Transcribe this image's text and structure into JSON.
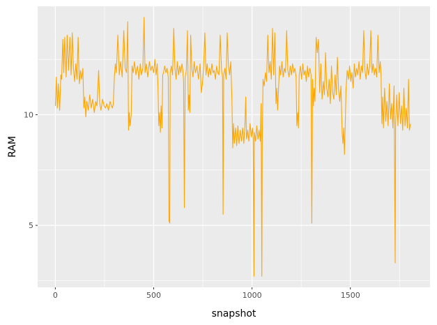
{
  "chart_data": {
    "type": "line",
    "title": "",
    "xlabel": "snapshot",
    "ylabel": "RAM",
    "xlim": [
      -90,
      1905
    ],
    "ylim": [
      2.2,
      14.9
    ],
    "x_ticks": [
      0,
      500,
      1000,
      1500
    ],
    "y_ticks": [
      5,
      10
    ],
    "grid": true,
    "legend": "none",
    "colors": {
      "line": "#FFA500",
      "panel": "#EBEBEB",
      "grid": "#FFFFFF"
    },
    "series": [
      {
        "points": [
          [
            0,
            10.4
          ],
          [
            5,
            11.7
          ],
          [
            10,
            10.3
          ],
          [
            15,
            11.4
          ],
          [
            22,
            10.2
          ],
          [
            28,
            11.8
          ],
          [
            32,
            11.6
          ],
          [
            38,
            13.4
          ],
          [
            43,
            11.9
          ],
          [
            48,
            13.5
          ],
          [
            55,
            11.7
          ],
          [
            60,
            13.6
          ],
          [
            67,
            12.0
          ],
          [
            74,
            13.5
          ],
          [
            80,
            11.8
          ],
          [
            86,
            13.7
          ],
          [
            92,
            12.1
          ],
          [
            98,
            11.5
          ],
          [
            104,
            12.3
          ],
          [
            110,
            11.6
          ],
          [
            116,
            13.5
          ],
          [
            122,
            11.4
          ],
          [
            128,
            12.0
          ],
          [
            134,
            11.6
          ],
          [
            140,
            12.1
          ],
          [
            145,
            10.3
          ],
          [
            150,
            10.8
          ],
          [
            155,
            9.9
          ],
          [
            160,
            10.6
          ],
          [
            168,
            10.2
          ],
          [
            175,
            10.9
          ],
          [
            182,
            10.3
          ],
          [
            190,
            10.7
          ],
          [
            198,
            10.1
          ],
          [
            205,
            10.6
          ],
          [
            212,
            10.4
          ],
          [
            220,
            12.0
          ],
          [
            226,
            10.5
          ],
          [
            232,
            10.2
          ],
          [
            240,
            10.7
          ],
          [
            248,
            10.4
          ],
          [
            255,
            10.3
          ],
          [
            262,
            10.5
          ],
          [
            270,
            10.2
          ],
          [
            278,
            10.6
          ],
          [
            285,
            10.4
          ],
          [
            290,
            10.3
          ],
          [
            295,
            10.5
          ],
          [
            300,
            11.7
          ],
          [
            305,
            12.3
          ],
          [
            310,
            11.9
          ],
          [
            318,
            13.6
          ],
          [
            325,
            11.8
          ],
          [
            332,
            12.4
          ],
          [
            340,
            11.7
          ],
          [
            348,
            13.8
          ],
          [
            355,
            12.1
          ],
          [
            362,
            11.9
          ],
          [
            368,
            14.2
          ],
          [
            372,
            9.3
          ],
          [
            376,
            10.1
          ],
          [
            380,
            9.5
          ],
          [
            386,
            10.0
          ],
          [
            390,
            12.2
          ],
          [
            396,
            11.9
          ],
          [
            402,
            12.4
          ],
          [
            410,
            11.8
          ],
          [
            418,
            12.2
          ],
          [
            425,
            11.6
          ],
          [
            432,
            12.3
          ],
          [
            438,
            11.8
          ],
          [
            445,
            12.1
          ],
          [
            451,
            14.4
          ],
          [
            456,
            11.9
          ],
          [
            462,
            12.3
          ],
          [
            470,
            11.7
          ],
          [
            478,
            12.4
          ],
          [
            485,
            12.0
          ],
          [
            492,
            12.2
          ],
          [
            500,
            11.9
          ],
          [
            506,
            12.5
          ],
          [
            512,
            11.8
          ],
          [
            518,
            12.3
          ],
          [
            522,
            11.2
          ],
          [
            526,
            9.5
          ],
          [
            530,
            10.1
          ],
          [
            534,
            9.2
          ],
          [
            538,
            10.4
          ],
          [
            542,
            9.4
          ],
          [
            546,
            11.8
          ],
          [
            550,
            11.9
          ],
          [
            556,
            12.2
          ],
          [
            562,
            11.9
          ],
          [
            568,
            12.1
          ],
          [
            574,
            11.7
          ],
          [
            578,
            5.2
          ],
          [
            582,
            5.1
          ],
          [
            584,
            11.9
          ],
          [
            590,
            12.2
          ],
          [
            596,
            11.8
          ],
          [
            602,
            13.9
          ],
          [
            608,
            12.1
          ],
          [
            614,
            11.6
          ],
          [
            620,
            12.4
          ],
          [
            626,
            11.8
          ],
          [
            632,
            12.2
          ],
          [
            638,
            11.9
          ],
          [
            644,
            12.3
          ],
          [
            648,
            12.0
          ],
          [
            652,
            11.5
          ],
          [
            656,
            5.8
          ],
          [
            660,
            11.7
          ],
          [
            666,
            12.0
          ],
          [
            672,
            13.8
          ],
          [
            676,
            10.2
          ],
          [
            680,
            10.9
          ],
          [
            684,
            10.1
          ],
          [
            688,
            13.6
          ],
          [
            694,
            12.1
          ],
          [
            700,
            11.7
          ],
          [
            706,
            12.4
          ],
          [
            712,
            11.9
          ],
          [
            720,
            12.2
          ],
          [
            728,
            11.6
          ],
          [
            736,
            12.3
          ],
          [
            742,
            11.0
          ],
          [
            748,
            11.4
          ],
          [
            754,
            12.2
          ],
          [
            760,
            13.7
          ],
          [
            766,
            11.8
          ],
          [
            772,
            12.3
          ],
          [
            778,
            11.7
          ],
          [
            784,
            12.1
          ],
          [
            790,
            11.8
          ],
          [
            796,
            12.3
          ],
          [
            802,
            11.9
          ],
          [
            808,
            12.0
          ],
          [
            814,
            11.6
          ],
          [
            820,
            12.2
          ],
          [
            826,
            11.9
          ],
          [
            832,
            11.8
          ],
          [
            838,
            13.6
          ],
          [
            845,
            12.0
          ],
          [
            850,
            11.7
          ],
          [
            853,
            5.5
          ],
          [
            856,
            11.8
          ],
          [
            862,
            12.1
          ],
          [
            868,
            11.6
          ],
          [
            874,
            13.7
          ],
          [
            880,
            12.2
          ],
          [
            886,
            11.8
          ],
          [
            892,
            12.4
          ],
          [
            898,
            10.6
          ],
          [
            902,
            8.5
          ],
          [
            906,
            9.6
          ],
          [
            910,
            8.7
          ],
          [
            916,
            9.4
          ],
          [
            922,
            8.6
          ],
          [
            928,
            9.5
          ],
          [
            934,
            8.7
          ],
          [
            940,
            9.3
          ],
          [
            946,
            8.8
          ],
          [
            952,
            9.4
          ],
          [
            958,
            8.7
          ],
          [
            964,
            9.5
          ],
          [
            968,
            10.8
          ],
          [
            972,
            8.9
          ],
          [
            978,
            9.3
          ],
          [
            984,
            8.8
          ],
          [
            990,
            9.6
          ],
          [
            996,
            9.0
          ],
          [
            1002,
            9.4
          ],
          [
            1006,
            8.9
          ],
          [
            1010,
            2.7
          ],
          [
            1012,
            9.2
          ],
          [
            1018,
            8.8
          ],
          [
            1024,
            9.5
          ],
          [
            1030,
            8.9
          ],
          [
            1036,
            9.3
          ],
          [
            1042,
            8.8
          ],
          [
            1046,
            10.5
          ],
          [
            1050,
            2.7
          ],
          [
            1052,
            8.7
          ],
          [
            1056,
            11.6
          ],
          [
            1062,
            11.3
          ],
          [
            1068,
            11.9
          ],
          [
            1074,
            11.5
          ],
          [
            1080,
            13.6
          ],
          [
            1086,
            11.9
          ],
          [
            1092,
            12.4
          ],
          [
            1098,
            11.6
          ],
          [
            1104,
            13.9
          ],
          [
            1110,
            11.8
          ],
          [
            1116,
            13.7
          ],
          [
            1122,
            10.5
          ],
          [
            1126,
            11.2
          ],
          [
            1130,
            10.2
          ],
          [
            1134,
            11.0
          ],
          [
            1140,
            12.2
          ],
          [
            1146,
            11.8
          ],
          [
            1152,
            12.4
          ],
          [
            1158,
            11.7
          ],
          [
            1164,
            12.1
          ],
          [
            1170,
            11.9
          ],
          [
            1176,
            13.8
          ],
          [
            1182,
            12.0
          ],
          [
            1188,
            11.7
          ],
          [
            1194,
            12.2
          ],
          [
            1200,
            11.8
          ],
          [
            1206,
            12.3
          ],
          [
            1212,
            11.9
          ],
          [
            1218,
            12.1
          ],
          [
            1224,
            11.7
          ],
          [
            1228,
            9.5
          ],
          [
            1232,
            10.1
          ],
          [
            1236,
            9.4
          ],
          [
            1240,
            11.8
          ],
          [
            1246,
            12.2
          ],
          [
            1252,
            11.6
          ],
          [
            1258,
            12.3
          ],
          [
            1264,
            11.8
          ],
          [
            1270,
            12.0
          ],
          [
            1276,
            11.5
          ],
          [
            1282,
            12.2
          ],
          [
            1288,
            11.7
          ],
          [
            1294,
            12.1
          ],
          [
            1300,
            11.8
          ],
          [
            1304,
            5.1
          ],
          [
            1308,
            11.6
          ],
          [
            1312,
            10.4
          ],
          [
            1316,
            11.2
          ],
          [
            1320,
            10.6
          ],
          [
            1326,
            13.5
          ],
          [
            1332,
            12.8
          ],
          [
            1338,
            13.4
          ],
          [
            1344,
            11.0
          ],
          [
            1350,
            12.3
          ],
          [
            1356,
            10.7
          ],
          [
            1362,
            11.5
          ],
          [
            1368,
            10.9
          ],
          [
            1374,
            12.8
          ],
          [
            1380,
            11.2
          ],
          [
            1386,
            10.8
          ],
          [
            1392,
            11.6
          ],
          [
            1398,
            10.5
          ],
          [
            1404,
            12.2
          ],
          [
            1410,
            11.0
          ],
          [
            1416,
            10.7
          ],
          [
            1422,
            11.8
          ],
          [
            1428,
            10.9
          ],
          [
            1434,
            12.6
          ],
          [
            1440,
            11.1
          ],
          [
            1446,
            10.6
          ],
          [
            1452,
            11.3
          ],
          [
            1458,
            9.2
          ],
          [
            1462,
            8.7
          ],
          [
            1466,
            9.4
          ],
          [
            1470,
            8.2
          ],
          [
            1474,
            9.6
          ],
          [
            1478,
            11.2
          ],
          [
            1484,
            12.0
          ],
          [
            1490,
            11.6
          ],
          [
            1496,
            12.2
          ],
          [
            1502,
            11.5
          ],
          [
            1508,
            11.9
          ],
          [
            1514,
            11.2
          ],
          [
            1520,
            12.3
          ],
          [
            1526,
            11.7
          ],
          [
            1532,
            12.1
          ],
          [
            1538,
            11.8
          ],
          [
            1544,
            12.4
          ],
          [
            1550,
            11.6
          ],
          [
            1556,
            12.2
          ],
          [
            1562,
            11.9
          ],
          [
            1568,
            13.8
          ],
          [
            1574,
            12.0
          ],
          [
            1580,
            11.6
          ],
          [
            1586,
            12.3
          ],
          [
            1592,
            11.8
          ],
          [
            1598,
            12.2
          ],
          [
            1604,
            13.8
          ],
          [
            1610,
            11.9
          ],
          [
            1616,
            12.3
          ],
          [
            1622,
            11.8
          ],
          [
            1628,
            12.1
          ],
          [
            1634,
            11.7
          ],
          [
            1640,
            13.6
          ],
          [
            1646,
            11.9
          ],
          [
            1652,
            12.4
          ],
          [
            1656,
            11.8
          ],
          [
            1660,
            9.6
          ],
          [
            1664,
            10.8
          ],
          [
            1668,
            9.4
          ],
          [
            1674,
            11.2
          ],
          [
            1680,
            9.7
          ],
          [
            1686,
            10.6
          ],
          [
            1692,
            9.5
          ],
          [
            1698,
            11.4
          ],
          [
            1704,
            9.8
          ],
          [
            1710,
            10.5
          ],
          [
            1716,
            9.4
          ],
          [
            1722,
            11.3
          ],
          [
            1728,
            3.3
          ],
          [
            1730,
            9.6
          ],
          [
            1736,
            10.9
          ],
          [
            1742,
            9.5
          ],
          [
            1748,
            11.0
          ],
          [
            1754,
            9.6
          ],
          [
            1760,
            10.4
          ],
          [
            1766,
            9.3
          ],
          [
            1772,
            11.2
          ],
          [
            1778,
            9.5
          ],
          [
            1784,
            10.3
          ],
          [
            1790,
            9.4
          ],
          [
            1796,
            11.6
          ],
          [
            1800,
            9.3
          ],
          [
            1806,
            9.6
          ]
        ]
      }
    ]
  }
}
